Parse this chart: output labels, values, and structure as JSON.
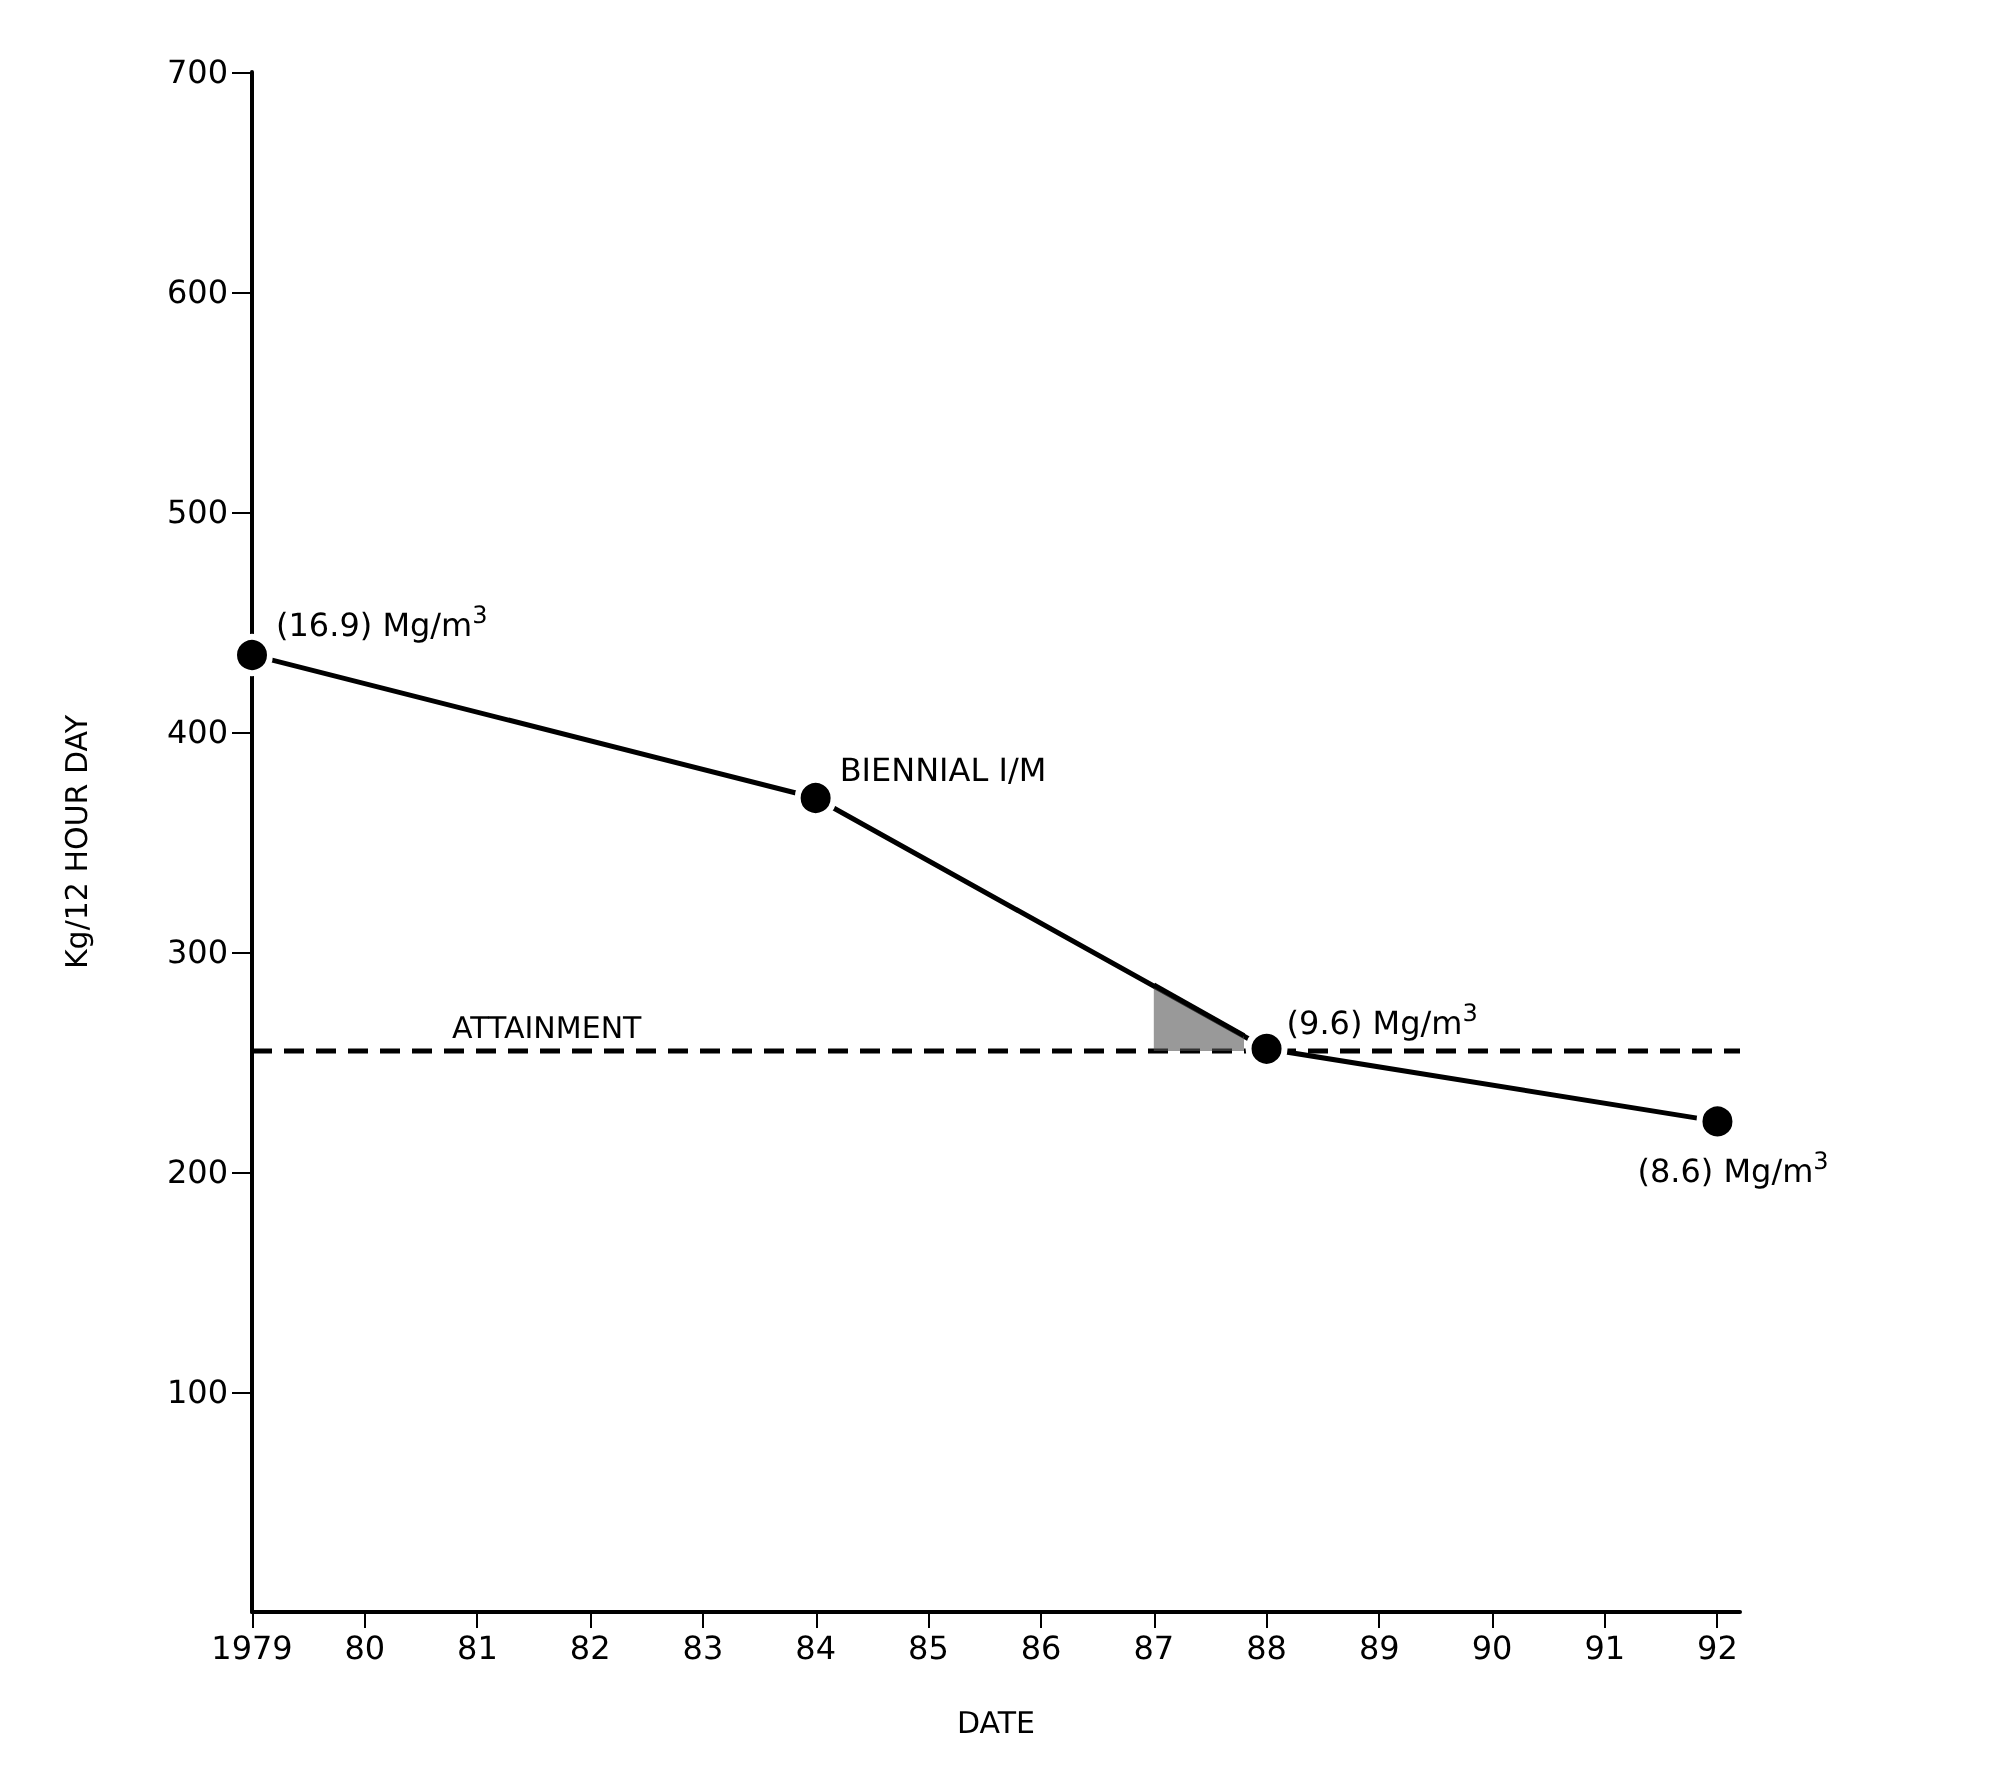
{
  "chart_data": {
    "type": "line",
    "xlabel": "DATE",
    "ylabel": "Kg/12 HOUR DAY",
    "x": [
      1979,
      1984,
      1988,
      1992
    ],
    "series": [
      {
        "color": "#000000",
        "values": [
          435,
          370,
          256,
          223
        ],
        "marker": "circle"
      },
      {
        "type": "area",
        "color": "#555555",
        "x": [
          1987,
          1987.8
        ],
        "values": [
          285,
          262
        ]
      }
    ],
    "xlim": [
      1979,
      1992.2
    ],
    "xticks": [
      1979,
      {
        "value": 1980,
        "label": "80"
      },
      {
        "value": 1981,
        "label": "81"
      },
      {
        "value": 1982,
        "label": "82"
      },
      {
        "value": 1983,
        "label": "83"
      },
      {
        "value": 1984,
        "label": "84"
      },
      {
        "value": 1985,
        "label": "85"
      },
      {
        "value": 1986,
        "label": "86"
      },
      {
        "value": 1987,
        "label": "87"
      },
      {
        "value": 1988,
        "label": "88"
      },
      {
        "value": 1989,
        "label": "89"
      },
      {
        "value": 1990,
        "label": "90"
      },
      {
        "value": 1991,
        "label": "91"
      },
      {
        "value": 1992,
        "label": "92"
      }
    ],
    "ylim": [
      0,
      700
    ],
    "yticks": [
      100,
      200,
      300,
      400,
      500,
      600,
      700
    ],
    "ref_lines": [
      {
        "axis": "y",
        "value": 255,
        "label": "ATTAINMENT",
        "color": "#000000",
        "line_style": "dashed"
      }
    ],
    "annotations": [
      {
        "text": "(16.9) Mg/m$^{3}$",
        "x": 1979,
        "y": 435
      },
      {
        "text": "BIENNIAL I/M",
        "x": 1984,
        "y": 370
      },
      {
        "text": "(9.6) Mg/m$^{3}$",
        "x": 1988,
        "y": 256
      },
      {
        "text": "(8.6) Mg/m$^{3}$",
        "x": 1992,
        "y": 223
      }
    ],
    "grid": false
  }
}
